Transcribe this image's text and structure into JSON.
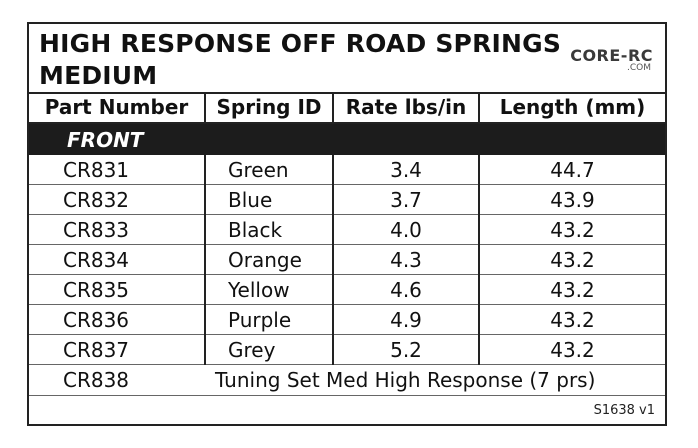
{
  "title": {
    "line1": "HIGH RESPONSE OFF ROAD SPRINGS",
    "line2": "MEDIUM"
  },
  "logo": {
    "main": "CORE-RC",
    "sub": ".COM"
  },
  "table": {
    "headers": [
      "Part Number",
      "Spring ID",
      "Rate lbs/in",
      "Length (mm)"
    ],
    "section_label": "FRONT",
    "rows": [
      {
        "part": "CR831",
        "spring_id": "Green",
        "rate": "3.4",
        "length": "44.7"
      },
      {
        "part": "CR832",
        "spring_id": "Blue",
        "rate": "3.7",
        "length": "43.9"
      },
      {
        "part": "CR833",
        "spring_id": "Black",
        "rate": "4.0",
        "length": "43.2"
      },
      {
        "part": "CR834",
        "spring_id": "Orange",
        "rate": "4.3",
        "length": "43.2"
      },
      {
        "part": "CR835",
        "spring_id": "Yellow",
        "rate": "4.6",
        "length": "43.2"
      },
      {
        "part": "CR836",
        "spring_id": "Purple",
        "rate": "4.9",
        "length": "43.2"
      },
      {
        "part": "CR837",
        "spring_id": "Grey",
        "rate": "5.2",
        "length": "43.2"
      }
    ],
    "tuning_set": {
      "part": "CR838",
      "description": "Tuning Set Med High Response (7 prs)"
    },
    "version": "S1638 v1"
  },
  "colors": {
    "border": "#222222",
    "section_bg": "#1c1c1c",
    "section_text": "#ffffff",
    "text": "#111111"
  }
}
